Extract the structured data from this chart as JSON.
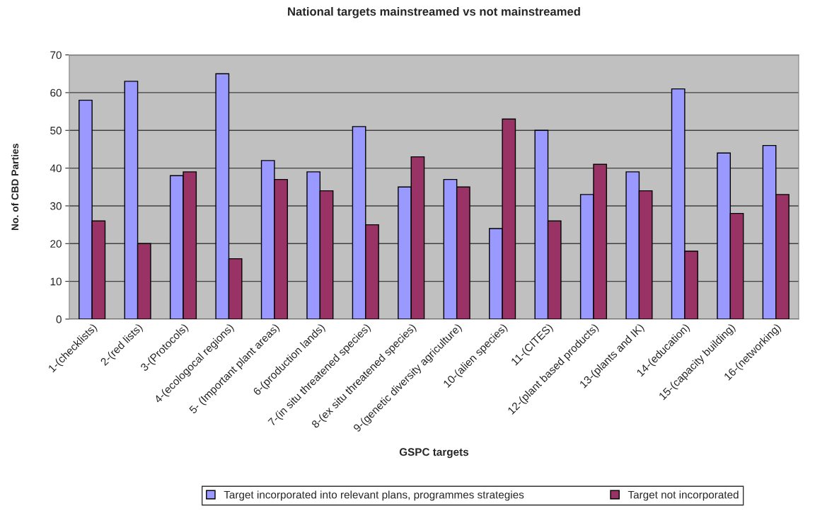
{
  "chart_data": {
    "type": "bar",
    "title": "National targets mainstreamed vs not mainstreamed",
    "xlabel": "GSPC targets",
    "ylabel": "No. of CBD Parties",
    "categories": [
      "1-(checklists)",
      "2-(red lists)",
      "3-(Protocols)",
      "4-(ecologocal regions)",
      "5- (Important plant areas)",
      "6-(production lands)",
      "7-(in situ threatened species)",
      "8-(ex situ threatened species)",
      "9-(genetic diversity agriculture)",
      "10-(alien species)",
      "11-(CITES)",
      "12-(plant based products)",
      "13-(plants and IK)",
      "14-(education)",
      "15-(capacity building)",
      "16-(networking)"
    ],
    "series": [
      {
        "name": "Target incorporated into relevant plans, programmes strategies",
        "color": "#9999ff",
        "values": [
          58,
          63,
          38,
          65,
          42,
          39,
          51,
          35,
          37,
          24,
          50,
          33,
          39,
          61,
          44,
          46
        ]
      },
      {
        "name": "Target not incorporated",
        "color": "#993366",
        "values": [
          26,
          20,
          39,
          16,
          37,
          34,
          25,
          43,
          35,
          53,
          26,
          41,
          34,
          18,
          28,
          33
        ]
      }
    ],
    "ylim": [
      0,
      70
    ],
    "yticks": [
      0,
      10,
      20,
      30,
      40,
      50,
      60,
      70
    ],
    "grid": "y",
    "legend": "bottom"
  }
}
